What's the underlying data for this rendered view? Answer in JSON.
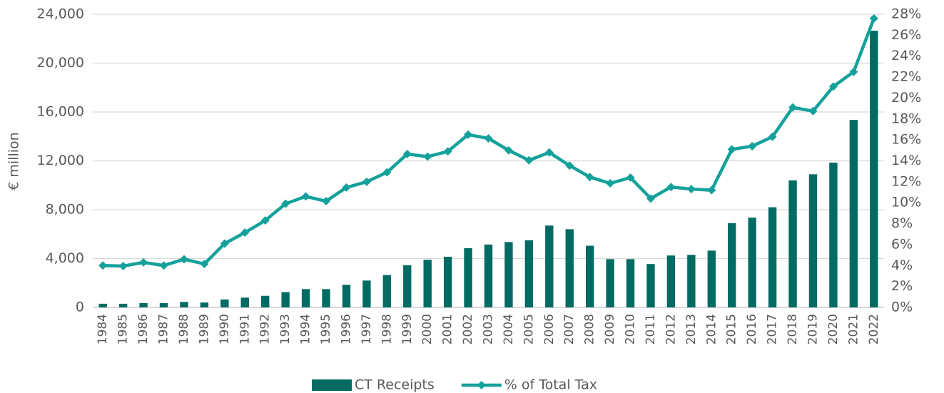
{
  "chart_data": {
    "type": "bar",
    "y_axis_label": "€ million",
    "categories": [
      "1984",
      "1985",
      "1986",
      "1987",
      "1988",
      "1989",
      "1990",
      "1991",
      "1992",
      "1993",
      "1994",
      "1995",
      "1996",
      "1997",
      "1998",
      "1999",
      "2000",
      "2001",
      "2002",
      "2003",
      "2004",
      "2005",
      "2006",
      "2007",
      "2008",
      "2009",
      "2010",
      "2011",
      "2012",
      "2013",
      "2014",
      "2015",
      "2016",
      "2017",
      "2018",
      "2019",
      "2020",
      "2021",
      "2022"
    ],
    "series": [
      {
        "name": "CT Receipts",
        "type": "bar",
        "color": "#006b63",
        "values": [
          300,
          300,
          350,
          350,
          450,
          400,
          650,
          800,
          950,
          1250,
          1500,
          1500,
          1850,
          2200,
          2650,
          3450,
          3900,
          4150,
          4850,
          5150,
          5350,
          5500,
          6700,
          6400,
          5050,
          3950,
          3950,
          3550,
          4250,
          4300,
          4650,
          6900,
          7350,
          8200,
          10400,
          10900,
          11850,
          15350,
          22650
        ]
      },
      {
        "name": "% of Total Tax",
        "type": "line",
        "axis": "y2",
        "color": "#14a19b",
        "values": [
          4.0,
          3.95,
          4.3,
          4.0,
          4.6,
          4.15,
          6.1,
          7.15,
          8.3,
          9.9,
          10.6,
          10.15,
          11.45,
          12.0,
          12.9,
          14.65,
          14.4,
          14.9,
          16.5,
          16.15,
          15.0,
          14.05,
          14.8,
          13.55,
          12.45,
          11.85,
          12.4,
          10.4,
          11.5,
          11.3,
          11.2,
          15.1,
          15.4,
          16.3,
          19.1,
          18.75,
          21.1,
          22.5,
          27.6
        ]
      }
    ],
    "ylim": [
      0,
      24000
    ],
    "yticks": [
      0,
      {
        "value": 4000,
        "label": "4,000"
      },
      {
        "value": 8000,
        "label": "8,000"
      },
      {
        "value": 12000,
        "label": "12,000"
      },
      {
        "value": 16000,
        "label": "16,000"
      },
      {
        "value": 20000,
        "label": "20,000"
      },
      {
        "value": 24000,
        "label": "24,000"
      }
    ],
    "y2lim": [
      0,
      28
    ],
    "y2ticks": [
      {
        "value": 0,
        "label": "0%"
      },
      {
        "value": 2,
        "label": "2%"
      },
      {
        "value": 4,
        "label": "4%"
      },
      {
        "value": 6,
        "label": "6%"
      },
      {
        "value": 8,
        "label": "8%"
      },
      {
        "value": 10,
        "label": "10%"
      },
      {
        "value": 12,
        "label": "12%"
      },
      {
        "value": 14,
        "label": "14%"
      },
      {
        "value": 16,
        "label": "16%"
      },
      {
        "value": 18,
        "label": "18%"
      },
      {
        "value": 20,
        "label": "20%"
      },
      {
        "value": 22,
        "label": "22%"
      },
      {
        "value": 24,
        "label": "24%"
      },
      {
        "value": 26,
        "label": "26%"
      },
      {
        "value": 28,
        "label": "28%"
      }
    ],
    "grid": true,
    "legend": "bottom"
  }
}
